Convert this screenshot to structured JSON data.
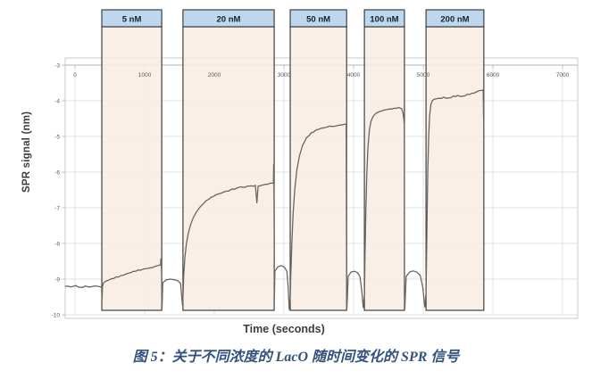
{
  "figure": {
    "caption": "图 5：关于不同浓度的 LacO 随时间变化的 SPR 信号"
  },
  "chart_data": {
    "type": "line",
    "title": "",
    "xlabel": "Time (seconds)",
    "ylabel": "SPR signal (nm)",
    "xlim": [
      0,
      7000
    ],
    "ylim": [
      -10,
      -3
    ],
    "grid": true,
    "x_ticks": [
      0,
      1000,
      2000,
      3000,
      4000,
      5000,
      6000,
      7000
    ],
    "y_ticks": [
      -3,
      -4,
      -5,
      -6,
      -7,
      -8,
      -9,
      -10
    ],
    "phases": [
      {
        "label": "5 nM",
        "t_start": 385,
        "t_end": 1245
      },
      {
        "label": "20 nM",
        "t_start": 1550,
        "t_end": 2860
      },
      {
        "label": "50 nM",
        "t_start": 3090,
        "t_end": 3900
      },
      {
        "label": "100 nM",
        "t_start": 4155,
        "t_end": 4730
      },
      {
        "label": "200 nM",
        "t_start": 5040,
        "t_end": 5870
      }
    ],
    "series": [
      {
        "name": "SPR signal",
        "points": [
          [
            -140,
            -9.2
          ],
          [
            -60,
            -9.22
          ],
          [
            10,
            -9.18
          ],
          [
            80,
            -9.23
          ],
          [
            150,
            -9.19
          ],
          [
            220,
            -9.22
          ],
          [
            290,
            -9.19
          ],
          [
            350,
            -9.21
          ],
          [
            382,
            -9.22
          ],
          [
            388,
            -9.56
          ],
          [
            395,
            -9.2
          ],
          [
            410,
            -9.1
          ],
          [
            450,
            -9.05
          ],
          [
            520,
            -8.99
          ],
          [
            590,
            -8.94
          ],
          [
            660,
            -8.9
          ],
          [
            730,
            -8.86
          ],
          [
            800,
            -8.82
          ],
          [
            870,
            -8.78
          ],
          [
            940,
            -8.75
          ],
          [
            1010,
            -8.71
          ],
          [
            1080,
            -8.68
          ],
          [
            1150,
            -8.64
          ],
          [
            1210,
            -8.61
          ],
          [
            1228,
            -8.6
          ],
          [
            1233,
            -8.44
          ],
          [
            1239,
            -8.57
          ],
          [
            1244,
            -8.9
          ],
          [
            1247,
            -9.85
          ],
          [
            1253,
            -9.62
          ],
          [
            1260,
            -9.1
          ],
          [
            1310,
            -9.02
          ],
          [
            1370,
            -9.0
          ],
          [
            1430,
            -9.02
          ],
          [
            1480,
            -9.05
          ],
          [
            1515,
            -9.12
          ],
          [
            1535,
            -9.55
          ],
          [
            1544,
            -9.74
          ],
          [
            1552,
            -9.4
          ],
          [
            1560,
            -8.9
          ],
          [
            1578,
            -8.38
          ],
          [
            1600,
            -8.0
          ],
          [
            1628,
            -7.7
          ],
          [
            1660,
            -7.47
          ],
          [
            1698,
            -7.28
          ],
          [
            1742,
            -7.12
          ],
          [
            1795,
            -6.98
          ],
          [
            1855,
            -6.86
          ],
          [
            1920,
            -6.76
          ],
          [
            1990,
            -6.68
          ],
          [
            2065,
            -6.61
          ],
          [
            2145,
            -6.55
          ],
          [
            2230,
            -6.5
          ],
          [
            2320,
            -6.45
          ],
          [
            2410,
            -6.42
          ],
          [
            2500,
            -6.39
          ],
          [
            2590,
            -6.37
          ],
          [
            2612,
            -6.86
          ],
          [
            2630,
            -6.39
          ],
          [
            2700,
            -6.36
          ],
          [
            2770,
            -6.34
          ],
          [
            2840,
            -6.31
          ],
          [
            2849,
            -6.3
          ],
          [
            2853,
            -5.78
          ],
          [
            2857,
            -6.4
          ],
          [
            2860,
            -7.6
          ],
          [
            2863,
            -9.5
          ],
          [
            2871,
            -8.78
          ],
          [
            2910,
            -8.66
          ],
          [
            2958,
            -8.62
          ],
          [
            3005,
            -8.66
          ],
          [
            3042,
            -8.78
          ],
          [
            3062,
            -9.25
          ],
          [
            3076,
            -9.85
          ],
          [
            3090,
            -9.5
          ],
          [
            3100,
            -8.8
          ],
          [
            3114,
            -7.95
          ],
          [
            3132,
            -7.15
          ],
          [
            3155,
            -6.5
          ],
          [
            3185,
            -5.95
          ],
          [
            3222,
            -5.55
          ],
          [
            3268,
            -5.25
          ],
          [
            3325,
            -5.03
          ],
          [
            3390,
            -4.9
          ],
          [
            3460,
            -4.82
          ],
          [
            3535,
            -4.77
          ],
          [
            3615,
            -4.74
          ],
          [
            3695,
            -4.72
          ],
          [
            3775,
            -4.69
          ],
          [
            3850,
            -4.67
          ],
          [
            3893,
            -4.65
          ],
          [
            3900,
            -9.2
          ],
          [
            3903,
            -9.85
          ],
          [
            3912,
            -9.5
          ],
          [
            3922,
            -8.92
          ],
          [
            3965,
            -8.8
          ],
          [
            4012,
            -8.78
          ],
          [
            4058,
            -8.82
          ],
          [
            4092,
            -8.94
          ],
          [
            4118,
            -9.35
          ],
          [
            4138,
            -9.8
          ],
          [
            4156,
            -9.4
          ],
          [
            4164,
            -8.3
          ],
          [
            4176,
            -7.1
          ],
          [
            4190,
            -6.05
          ],
          [
            4207,
            -5.3
          ],
          [
            4227,
            -4.82
          ],
          [
            4250,
            -4.57
          ],
          [
            4280,
            -4.44
          ],
          [
            4320,
            -4.35
          ],
          [
            4375,
            -4.3
          ],
          [
            4440,
            -4.26
          ],
          [
            4510,
            -4.23
          ],
          [
            4580,
            -4.21
          ],
          [
            4645,
            -4.19
          ],
          [
            4688,
            -4.22
          ],
          [
            4707,
            -4.32
          ],
          [
            4720,
            -4.5
          ],
          [
            4728,
            -4.65
          ],
          [
            4731,
            -9.4
          ],
          [
            4734,
            -9.85
          ],
          [
            4744,
            -9.45
          ],
          [
            4755,
            -8.92
          ],
          [
            4805,
            -8.8
          ],
          [
            4858,
            -8.77
          ],
          [
            4912,
            -8.81
          ],
          [
            4958,
            -8.9
          ],
          [
            4995,
            -9.25
          ],
          [
            5022,
            -9.78
          ],
          [
            5040,
            -9.4
          ],
          [
            5047,
            -8.4
          ],
          [
            5056,
            -7.1
          ],
          [
            5066,
            -5.95
          ],
          [
            5078,
            -5.0
          ],
          [
            5092,
            -4.4
          ],
          [
            5110,
            -4.1
          ],
          [
            5132,
            -3.99
          ],
          [
            5168,
            -3.95
          ],
          [
            5228,
            -3.93
          ],
          [
            5295,
            -3.9
          ],
          [
            5362,
            -3.92
          ],
          [
            5430,
            -3.87
          ],
          [
            5498,
            -3.85
          ],
          [
            5565,
            -3.87
          ],
          [
            5632,
            -3.82
          ],
          [
            5700,
            -3.79
          ],
          [
            5766,
            -3.75
          ],
          [
            5830,
            -3.71
          ],
          [
            5856,
            -3.7
          ],
          [
            5862,
            -3.74
          ],
          [
            5866,
            -4.35
          ],
          [
            5869,
            -4.72
          ]
        ]
      }
    ],
    "colors": {
      "trace": "#6b655f",
      "phase_fill": "#f9ecE3",
      "phase_border": "#3f3f3f",
      "phase_header_fill": "#bdd7ee",
      "phase_header_text": "#16202b",
      "grid": "#d9d9d9",
      "axis_line": "#b3b3b3",
      "plot_border": "#c9c9c9",
      "tick_text": "#595959",
      "caption_text": "#33527e"
    }
  }
}
